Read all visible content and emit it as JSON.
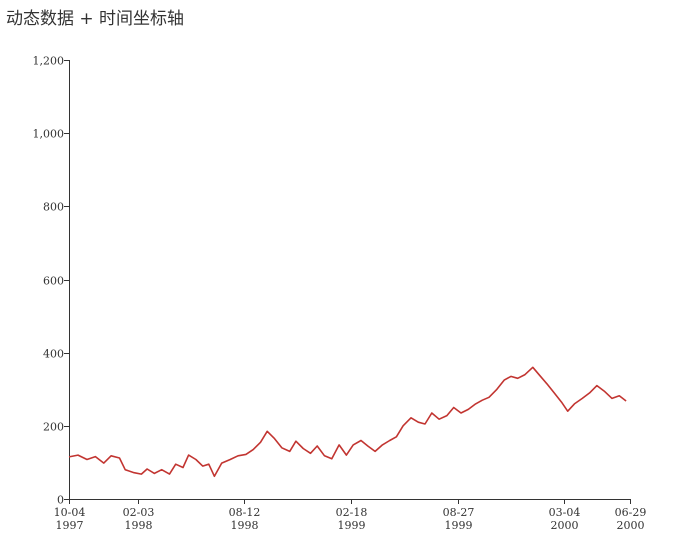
{
  "chart_data": {
    "type": "line",
    "title": "动态数据 + 时间坐标轴",
    "xlabel": "",
    "ylabel": "",
    "ylim": [
      0,
      1200
    ],
    "xlim": [
      "1997-10-04",
      "2000-06-29"
    ],
    "y_ticks": [
      "0",
      "200",
      "400",
      "600",
      "800",
      "1,000",
      "1,200"
    ],
    "y_tick_values": [
      0,
      200,
      400,
      600,
      800,
      1000,
      1200
    ],
    "x_ticks": [
      {
        "date": "1997-10-04",
        "line1": "10-04",
        "line2": "1997"
      },
      {
        "date": "1998-02-03",
        "line1": "02-03",
        "line2": "1998"
      },
      {
        "date": "1998-08-12",
        "line1": "08-12",
        "line2": "1998"
      },
      {
        "date": "1999-02-18",
        "line1": "02-18",
        "line2": "1999"
      },
      {
        "date": "1999-08-27",
        "line1": "08-27",
        "line2": "1999"
      },
      {
        "date": "2000-03-04",
        "line1": "03-04",
        "line2": "2000"
      },
      {
        "date": "2000-06-29",
        "line1": "06-29",
        "line2": "2000"
      }
    ],
    "line_color": "#c23531",
    "grid": false,
    "series": [
      {
        "points": [
          [
            "1997-10-04",
            115
          ],
          [
            "1997-10-20",
            120
          ],
          [
            "1997-11-05",
            108
          ],
          [
            "1997-11-20",
            116
          ],
          [
            "1997-12-05",
            98
          ],
          [
            "1997-12-18",
            118
          ],
          [
            "1998-01-02",
            112
          ],
          [
            "1998-01-12",
            80
          ],
          [
            "1998-01-28",
            72
          ],
          [
            "1998-02-10",
            68
          ],
          [
            "1998-02-20",
            82
          ],
          [
            "1998-03-05",
            70
          ],
          [
            "1998-03-18",
            80
          ],
          [
            "1998-04-01",
            68
          ],
          [
            "1998-04-12",
            95
          ],
          [
            "1998-04-25",
            86
          ],
          [
            "1998-05-05",
            120
          ],
          [
            "1998-05-18",
            108
          ],
          [
            "1998-05-30",
            90
          ],
          [
            "1998-06-10",
            95
          ],
          [
            "1998-06-20",
            62
          ],
          [
            "1998-07-03",
            98
          ],
          [
            "1998-07-18",
            108
          ],
          [
            "1998-08-01",
            118
          ],
          [
            "1998-08-15",
            122
          ],
          [
            "1998-08-28",
            135
          ],
          [
            "1998-09-10",
            155
          ],
          [
            "1998-09-22",
            185
          ],
          [
            "1998-10-05",
            165
          ],
          [
            "1998-10-18",
            140
          ],
          [
            "1998-11-01",
            130
          ],
          [
            "1998-11-12",
            158
          ],
          [
            "1998-11-25",
            138
          ],
          [
            "1998-12-08",
            125
          ],
          [
            "1998-12-20",
            145
          ],
          [
            "1999-01-02",
            118
          ],
          [
            "1999-01-15",
            110
          ],
          [
            "1999-01-28",
            148
          ],
          [
            "1999-02-10",
            120
          ],
          [
            "1999-02-22",
            148
          ],
          [
            "1999-03-08",
            160
          ],
          [
            "1999-03-20",
            145
          ],
          [
            "1999-04-02",
            130
          ],
          [
            "1999-04-15",
            148
          ],
          [
            "1999-04-28",
            160
          ],
          [
            "1999-05-10",
            170
          ],
          [
            "1999-05-22",
            200
          ],
          [
            "1999-06-05",
            222
          ],
          [
            "1999-06-18",
            210
          ],
          [
            "1999-06-30",
            205
          ],
          [
            "1999-07-12",
            235
          ],
          [
            "1999-07-25",
            218
          ],
          [
            "1999-08-08",
            228
          ],
          [
            "1999-08-20",
            250
          ],
          [
            "1999-09-02",
            235
          ],
          [
            "1999-09-15",
            245
          ],
          [
            "1999-09-28",
            260
          ],
          [
            "1999-10-10",
            270
          ],
          [
            "1999-10-22",
            278
          ],
          [
            "1999-11-05",
            300
          ],
          [
            "1999-11-18",
            325
          ],
          [
            "1999-11-30",
            335
          ],
          [
            "1999-12-12",
            330
          ],
          [
            "1999-12-25",
            340
          ],
          [
            "2000-01-08",
            360
          ],
          [
            "2000-01-20",
            338
          ],
          [
            "2000-02-02",
            315
          ],
          [
            "2000-02-15",
            290
          ],
          [
            "2000-02-28",
            265
          ],
          [
            "2000-03-10",
            240
          ],
          [
            "2000-03-22",
            260
          ],
          [
            "2000-04-05",
            275
          ],
          [
            "2000-04-18",
            290
          ],
          [
            "2000-05-01",
            310
          ],
          [
            "2000-05-14",
            295
          ],
          [
            "2000-05-28",
            275
          ],
          [
            "2000-06-10",
            282
          ],
          [
            "2000-06-22",
            268
          ]
        ]
      }
    ]
  }
}
